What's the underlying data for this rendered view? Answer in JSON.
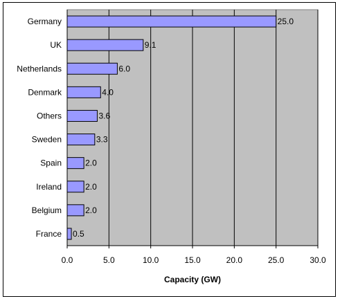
{
  "chart_data": {
    "type": "bar",
    "orientation": "horizontal",
    "title": "",
    "xlabel": "Capacity (GW)",
    "ylabel": "",
    "xlim": [
      0,
      30
    ],
    "x_ticks": [
      0,
      5,
      10,
      15,
      20,
      25,
      30
    ],
    "x_tick_labels": [
      "0.0",
      "5.0",
      "10.0",
      "15.0",
      "20.0",
      "25.0",
      "30.0"
    ],
    "categories": [
      "Germany",
      "UK",
      "Netherlands",
      "Denmark",
      "Others",
      "Sweden",
      "Spain",
      "Ireland",
      "Belgium",
      "France"
    ],
    "values": [
      25.0,
      9.1,
      6.0,
      4.0,
      3.6,
      3.3,
      2.0,
      2.0,
      2.0,
      0.5
    ],
    "value_labels": [
      "25.0",
      "9.1",
      "6.0",
      "4.0",
      "3.6",
      "3.3",
      "2.0",
      "2.0",
      "2.0",
      "0.5"
    ],
    "grid": "vertical",
    "legend": "none",
    "colors": {
      "bar_fill": "#9999ff",
      "bar_stroke": "#000000",
      "plot_background": "#c0c0c0",
      "gridline": "#000000"
    }
  }
}
